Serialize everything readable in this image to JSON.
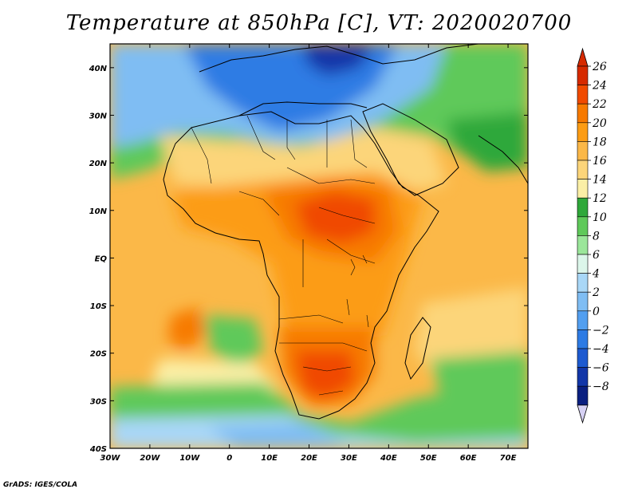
{
  "title": "Temperature at 850hPa [C], VT: 2020020700",
  "credit": "GrADS: IGES/COLA",
  "map": {
    "type": "heatmap",
    "variable": "Temperature at 850hPa",
    "units": "C",
    "valid_time": "2020020700",
    "lon_range": [
      -30,
      75
    ],
    "lat_range": [
      -40,
      45
    ],
    "x_ticks": [
      {
        "value": -30,
        "label": "30W"
      },
      {
        "value": -20,
        "label": "20W"
      },
      {
        "value": -10,
        "label": "10W"
      },
      {
        "value": 0,
        "label": "0"
      },
      {
        "value": 10,
        "label": "10E"
      },
      {
        "value": 20,
        "label": "20E"
      },
      {
        "value": 30,
        "label": "30E"
      },
      {
        "value": 40,
        "label": "40E"
      },
      {
        "value": 50,
        "label": "50E"
      },
      {
        "value": 60,
        "label": "60E"
      },
      {
        "value": 70,
        "label": "70E"
      }
    ],
    "y_ticks": [
      {
        "value": 40,
        "label": "40N"
      },
      {
        "value": 30,
        "label": "30N"
      },
      {
        "value": 20,
        "label": "20N"
      },
      {
        "value": 10,
        "label": "10N"
      },
      {
        "value": 0,
        "label": "EQ"
      },
      {
        "value": -10,
        "label": "10S"
      },
      {
        "value": -20,
        "label": "20S"
      },
      {
        "value": -30,
        "label": "30S"
      },
      {
        "value": -40,
        "label": "40S"
      }
    ]
  },
  "colorbar": {
    "labels": [
      "26",
      "24",
      "22",
      "20",
      "18",
      "16",
      "14",
      "12",
      "10",
      "8",
      "6",
      "4",
      "2",
      "0",
      "−2",
      "−4",
      "−6",
      "−8"
    ],
    "colors": [
      "#d62a00",
      "#f04a00",
      "#f77a00",
      "#fc9c14",
      "#fbb848",
      "#fcd57a",
      "#fbefa6",
      "#2fa83a",
      "#5fc95a",
      "#9be69a",
      "#dcf6ea",
      "#a9d7f7",
      "#7fbdf3",
      "#529ff0",
      "#2d7be4",
      "#1d5ad0",
      "#1236a8",
      "#0a1f80",
      "#d6d1f4"
    ],
    "top_arrow_color": "#d62a00",
    "bottom_arrow_color": "#d6d1f4"
  },
  "colors": {
    "cold": "#1d5ad0",
    "cool": "#7fbdf3",
    "mild": "#5fc95a",
    "warm": "#fbb848",
    "hot": "#f04a00"
  }
}
